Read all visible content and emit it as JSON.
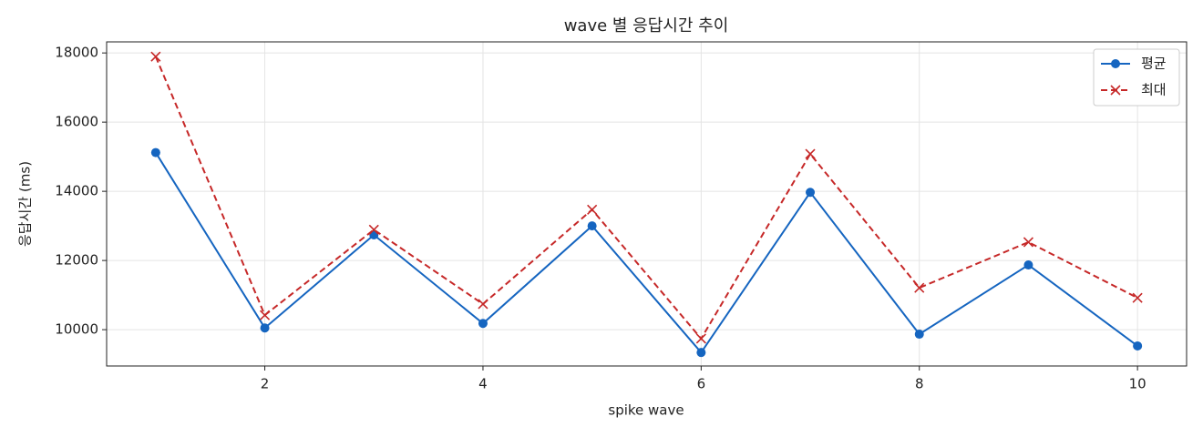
{
  "chart_data": {
    "type": "line",
    "title": "wave 별 응답시간 추이",
    "xlabel": "spike wave",
    "ylabel": "응답시간 (ms)",
    "x": [
      1,
      2,
      3,
      4,
      5,
      6,
      7,
      8,
      9,
      10
    ],
    "series": [
      {
        "name": "평균",
        "color": "#1565c0",
        "linestyle": "solid",
        "marker": "circle",
        "values": [
          15120,
          10050,
          12740,
          10180,
          13000,
          9340,
          13970,
          9870,
          11870,
          9530
        ]
      },
      {
        "name": "최대",
        "color": "#c62828",
        "linestyle": "dashed",
        "marker": "x",
        "values": [
          17895,
          10420,
          12890,
          10740,
          13470,
          9740,
          15080,
          11210,
          12530,
          10920
        ]
      }
    ],
    "xlim": [
      0.55,
      10.45
    ],
    "ylim": [
      8950,
      18320
    ],
    "xticks": [
      2,
      4,
      6,
      8,
      10
    ],
    "yticks": [
      10000,
      12000,
      14000,
      16000,
      18000
    ],
    "grid": true,
    "legend": "upper right"
  }
}
